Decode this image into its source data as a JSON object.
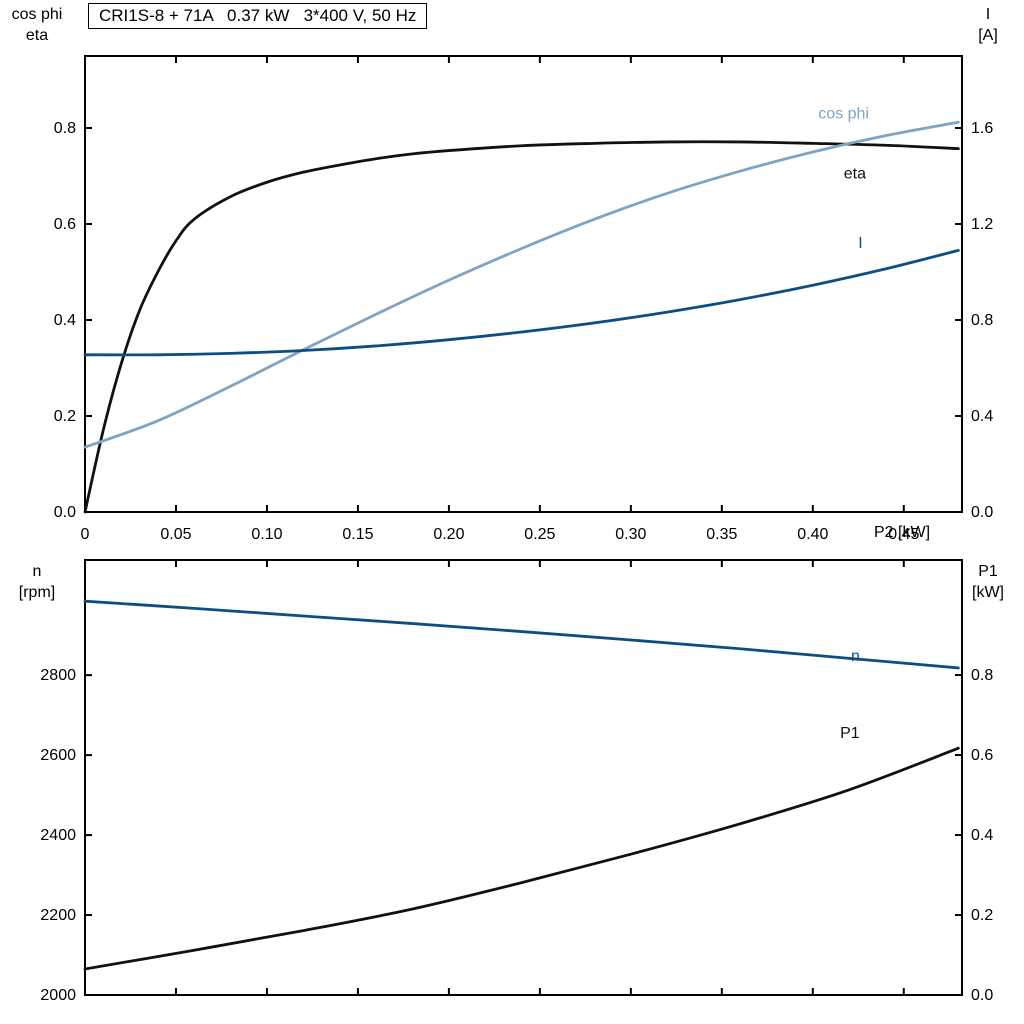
{
  "header": {
    "title": "CRI1S-8 + 71A   0.37 kW   3*400 V, 50 Hz"
  },
  "colors": {
    "black": "#111111",
    "light_blue": "#7fa3c2",
    "dark_blue": "#0e4d82",
    "axis": "#000000",
    "background": "#ffffff"
  },
  "chart_data": [
    {
      "type": "line",
      "id": "electrical-curves",
      "xlabel": "P2 [kW]",
      "xlim": [
        0,
        0.482
      ],
      "xtick_values": [
        0,
        0.05,
        0.1,
        0.15,
        0.2,
        0.25,
        0.3,
        0.35,
        0.4,
        0.45
      ],
      "xtick_labels": [
        "0",
        "0.05",
        "0.10",
        "0.15",
        "0.20",
        "0.25",
        "0.30",
        "0.35",
        "0.40",
        "0.45"
      ],
      "show_x_labels": true,
      "grid": false,
      "left_axis": {
        "title_lines": [
          "cos phi",
          "eta"
        ],
        "lim": [
          0,
          0.95
        ],
        "tick_values": [
          0,
          0.2,
          0.4,
          0.6,
          0.8
        ],
        "tick_labels": [
          "0.0",
          "0.2",
          "0.4",
          "0.6",
          "0.8"
        ]
      },
      "right_axis": {
        "title_lines": [
          "I",
          "[A]"
        ],
        "lim": [
          0,
          1.9
        ],
        "tick_values": [
          0,
          0.4,
          0.8,
          1.2,
          1.6
        ],
        "tick_labels": [
          "0.0",
          "0.4",
          "0.8",
          "1.2",
          "1.6"
        ]
      },
      "series": [
        {
          "name": "eta",
          "axis": "left",
          "color": "black",
          "label": "eta",
          "label_pos": [
            0.417,
            0.705
          ],
          "points": [
            [
              0,
              0
            ],
            [
              0.01,
              0.17
            ],
            [
              0.02,
              0.31
            ],
            [
              0.03,
              0.42
            ],
            [
              0.04,
              0.5
            ],
            [
              0.05,
              0.565
            ],
            [
              0.06,
              0.61
            ],
            [
              0.08,
              0.657
            ],
            [
              0.1,
              0.687
            ],
            [
              0.12,
              0.708
            ],
            [
              0.14,
              0.723
            ],
            [
              0.16,
              0.736
            ],
            [
              0.18,
              0.746
            ],
            [
              0.2,
              0.753
            ],
            [
              0.24,
              0.763
            ],
            [
              0.28,
              0.768
            ],
            [
              0.32,
              0.771
            ],
            [
              0.36,
              0.771
            ],
            [
              0.4,
              0.768
            ],
            [
              0.44,
              0.764
            ],
            [
              0.48,
              0.757
            ]
          ]
        },
        {
          "name": "cos phi",
          "axis": "left",
          "color": "light_blue",
          "label": "cos phi",
          "label_pos": [
            0.403,
            0.83
          ],
          "points": [
            [
              0,
              0.135
            ],
            [
              0.04,
              0.19
            ],
            [
              0.08,
              0.262
            ],
            [
              0.12,
              0.338
            ],
            [
              0.16,
              0.412
            ],
            [
              0.2,
              0.483
            ],
            [
              0.24,
              0.549
            ],
            [
              0.28,
              0.61
            ],
            [
              0.32,
              0.664
            ],
            [
              0.36,
              0.71
            ],
            [
              0.4,
              0.75
            ],
            [
              0.44,
              0.784
            ],
            [
              0.48,
              0.812
            ]
          ]
        },
        {
          "name": "I",
          "axis": "right",
          "color": "dark_blue",
          "label": "I",
          "label_pos": [
            0.425,
            1.12
          ],
          "points": [
            [
              0,
              0.655
            ],
            [
              0.04,
              0.655
            ],
            [
              0.08,
              0.661
            ],
            [
              0.12,
              0.673
            ],
            [
              0.16,
              0.692
            ],
            [
              0.2,
              0.718
            ],
            [
              0.24,
              0.75
            ],
            [
              0.28,
              0.788
            ],
            [
              0.32,
              0.833
            ],
            [
              0.36,
              0.885
            ],
            [
              0.4,
              0.945
            ],
            [
              0.44,
              1.013
            ],
            [
              0.48,
              1.09
            ]
          ]
        }
      ]
    },
    {
      "type": "line",
      "id": "speed-power-curves",
      "xlabel": "",
      "xlim": [
        0,
        0.482
      ],
      "xtick_values": [
        0,
        0.05,
        0.1,
        0.15,
        0.2,
        0.25,
        0.3,
        0.35,
        0.4,
        0.45
      ],
      "xtick_labels": [],
      "show_x_labels": false,
      "grid": false,
      "left_axis": {
        "title_lines": [
          "n",
          "[rpm]"
        ],
        "lim": [
          2000,
          3088
        ],
        "tick_values": [
          2000,
          2200,
          2400,
          2600,
          2800
        ],
        "tick_labels": [
          "2000",
          "2200",
          "2400",
          "2600",
          "2800"
        ]
      },
      "right_axis": {
        "title_lines": [
          "P1",
          "[kW]"
        ],
        "lim": [
          0,
          1.0875
        ],
        "tick_values": [
          0,
          0.2,
          0.4,
          0.6,
          0.8
        ],
        "tick_labels": [
          "0.0",
          "0.2",
          "0.4",
          "0.6",
          "0.8"
        ]
      },
      "series": [
        {
          "name": "n",
          "axis": "left",
          "color": "dark_blue",
          "label": "n",
          "label_pos": [
            0.421,
            2848
          ],
          "points": [
            [
              0,
              2985
            ],
            [
              0.06,
              2967
            ],
            [
              0.12,
              2948
            ],
            [
              0.18,
              2929
            ],
            [
              0.24,
              2909
            ],
            [
              0.3,
              2888
            ],
            [
              0.36,
              2866
            ],
            [
              0.42,
              2842
            ],
            [
              0.48,
              2818
            ]
          ]
        },
        {
          "name": "P1",
          "axis": "right",
          "color": "black",
          "label": "P1",
          "label_pos": [
            0.415,
            0.655
          ],
          "points": [
            [
              0,
              0.065
            ],
            [
              0.06,
              0.112
            ],
            [
              0.12,
              0.161
            ],
            [
              0.18,
              0.215
            ],
            [
              0.24,
              0.281
            ],
            [
              0.3,
              0.352
            ],
            [
              0.36,
              0.428
            ],
            [
              0.42,
              0.513
            ],
            [
              0.48,
              0.617
            ]
          ]
        }
      ]
    }
  ]
}
